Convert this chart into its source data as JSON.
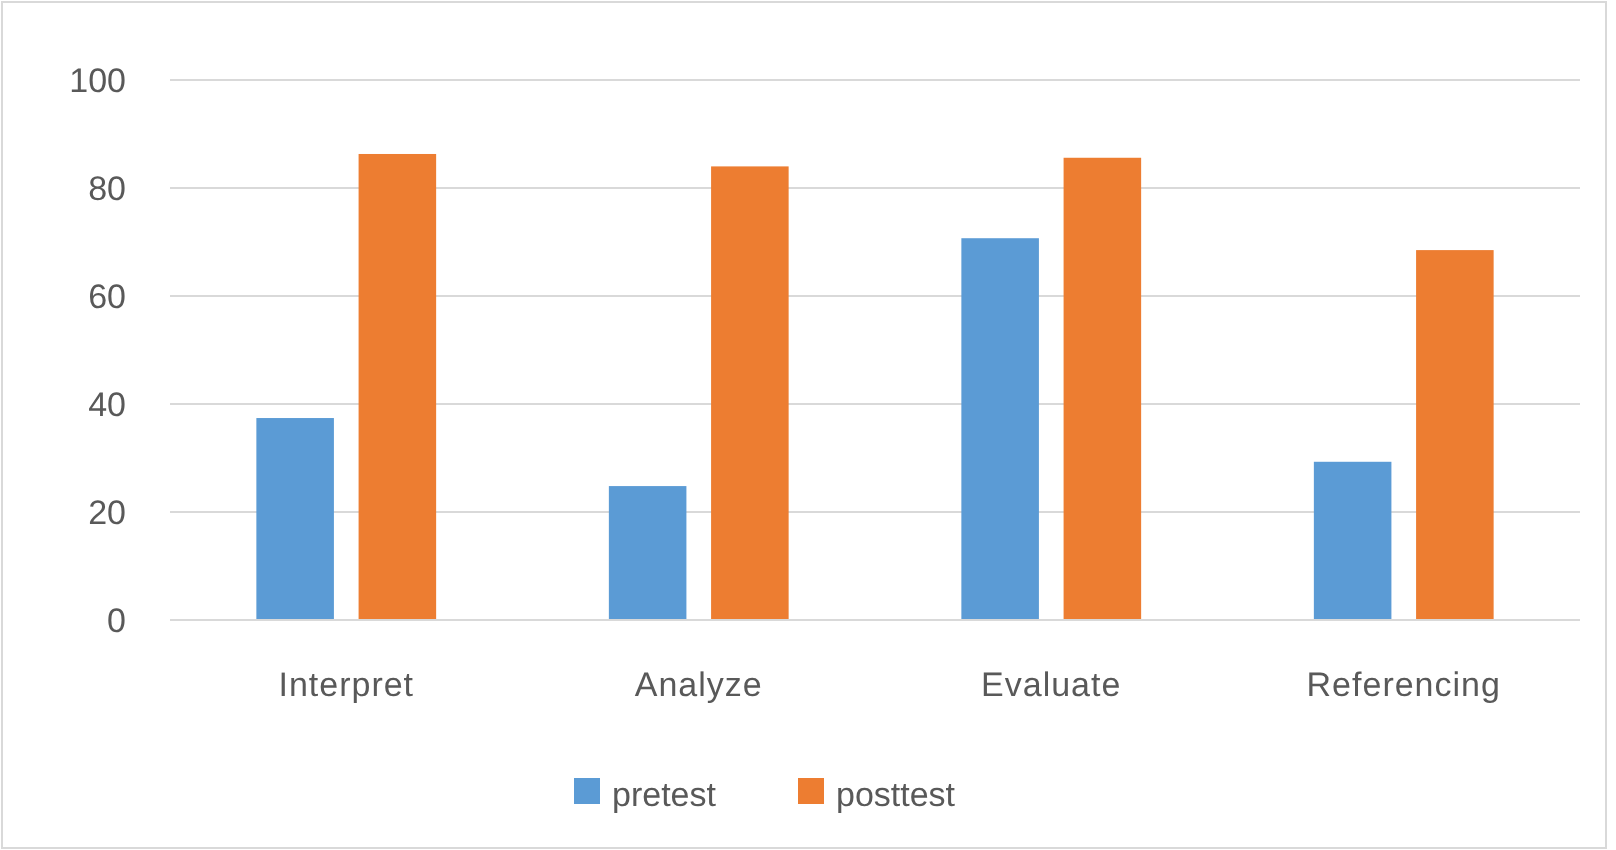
{
  "chart_data": {
    "type": "bar",
    "categories": [
      "Interpret",
      "Analyze",
      "Evaluate",
      "Referencing"
    ],
    "series": [
      {
        "name": "pretest",
        "color": "#5b9bd5",
        "values": [
          37.4,
          24.8,
          70.7,
          29.3
        ]
      },
      {
        "name": "posttest",
        "color": "#ed7d31",
        "values": [
          86.3,
          84,
          85.6,
          68.5
        ]
      }
    ],
    "ylim": [
      0,
      100
    ],
    "yticks": [
      0,
      20,
      40,
      60,
      80,
      100
    ],
    "grid": "y",
    "legend": "bottom"
  }
}
